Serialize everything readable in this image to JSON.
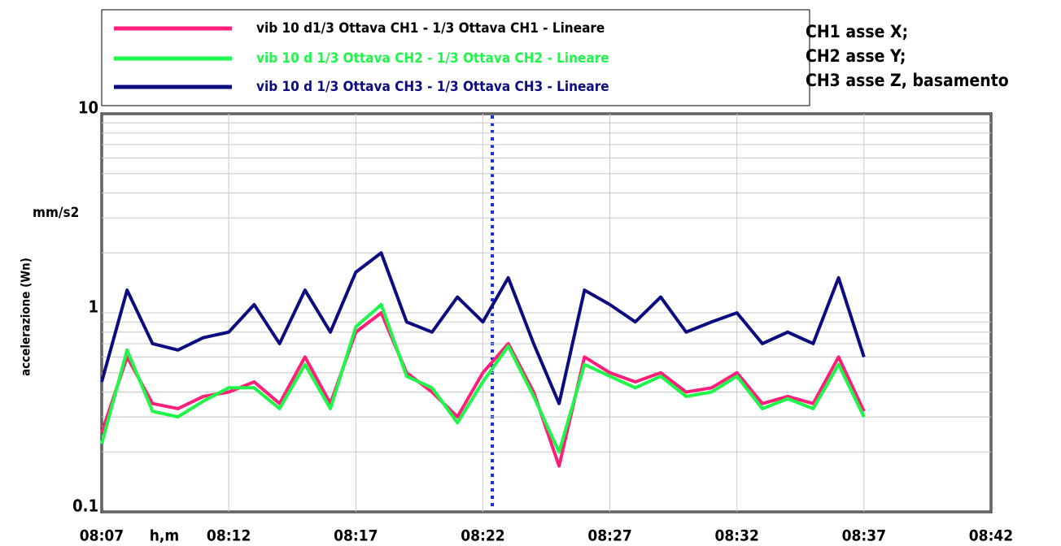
{
  "chart_data": {
    "type": "line",
    "y_label": "accelerazione (Wn)",
    "y_unit": "mm/s2",
    "x_label": "h,m",
    "notes": [
      "CH1 asse X;",
      "CH2 asse Y;",
      "CH3 asse Z, basamento"
    ],
    "log_y": true,
    "grid": true,
    "x": [
      "08:07",
      "08:08",
      "08:09",
      "08:10",
      "08:11",
      "08:12",
      "08:13",
      "08:14",
      "08:15",
      "08:16",
      "08:17",
      "08:18",
      "08:19",
      "08:20",
      "08:21",
      "08:22",
      "08:23",
      "08:24",
      "08:25",
      "08:26",
      "08:27",
      "08:28",
      "08:29",
      "08:30",
      "08:31",
      "08:32",
      "08:33",
      "08:34",
      "08:35",
      "08:36",
      "08:37"
    ],
    "xlim": [
      "08:07",
      "08:42"
    ],
    "xticks": [
      "08:07",
      "08:12",
      "08:17",
      "08:22",
      "08:27",
      "08:32",
      "08:37",
      "08:42"
    ],
    "ylim": [
      0.1,
      10
    ],
    "yticks": [
      0.1,
      1,
      10
    ],
    "series": [
      {
        "name": "vib 10 d1/3 Ottava CH1 - 1/3 Ottava CH1 - Lineare",
        "color": "#ff1f7a",
        "values": [
          0.25,
          0.6,
          0.35,
          0.33,
          0.38,
          0.4,
          0.45,
          0.35,
          0.6,
          0.35,
          0.8,
          1.0,
          0.5,
          0.4,
          0.3,
          0.5,
          0.7,
          0.4,
          0.17,
          0.6,
          0.5,
          0.45,
          0.5,
          0.4,
          0.42,
          0.5,
          0.35,
          0.38,
          0.35,
          0.6,
          0.32
        ]
      },
      {
        "name": "vib 10 d 1/3 Ottava CH2 - 1/3 Ottava CH2 - Lineare",
        "color": "#1ef74a",
        "values": [
          0.22,
          0.65,
          0.32,
          0.3,
          0.36,
          0.42,
          0.42,
          0.33,
          0.55,
          0.33,
          0.85,
          1.1,
          0.48,
          0.42,
          0.28,
          0.45,
          0.68,
          0.38,
          0.2,
          0.55,
          0.48,
          0.42,
          0.48,
          0.38,
          0.4,
          0.48,
          0.33,
          0.37,
          0.33,
          0.55,
          0.3
        ]
      },
      {
        "name": "vib 10 d 1/3 Ottava CH3 - 1/3 Ottava CH3 - Lineare",
        "color": "#0c0c80",
        "values": [
          0.45,
          1.3,
          0.7,
          0.65,
          0.75,
          0.8,
          1.1,
          0.7,
          1.3,
          0.8,
          1.6,
          2.0,
          0.9,
          0.8,
          1.2,
          0.9,
          1.5,
          0.7,
          0.35,
          1.3,
          1.1,
          0.9,
          1.2,
          0.8,
          0.9,
          1.0,
          0.7,
          0.8,
          0.7,
          1.5,
          0.6
        ]
      }
    ]
  }
}
